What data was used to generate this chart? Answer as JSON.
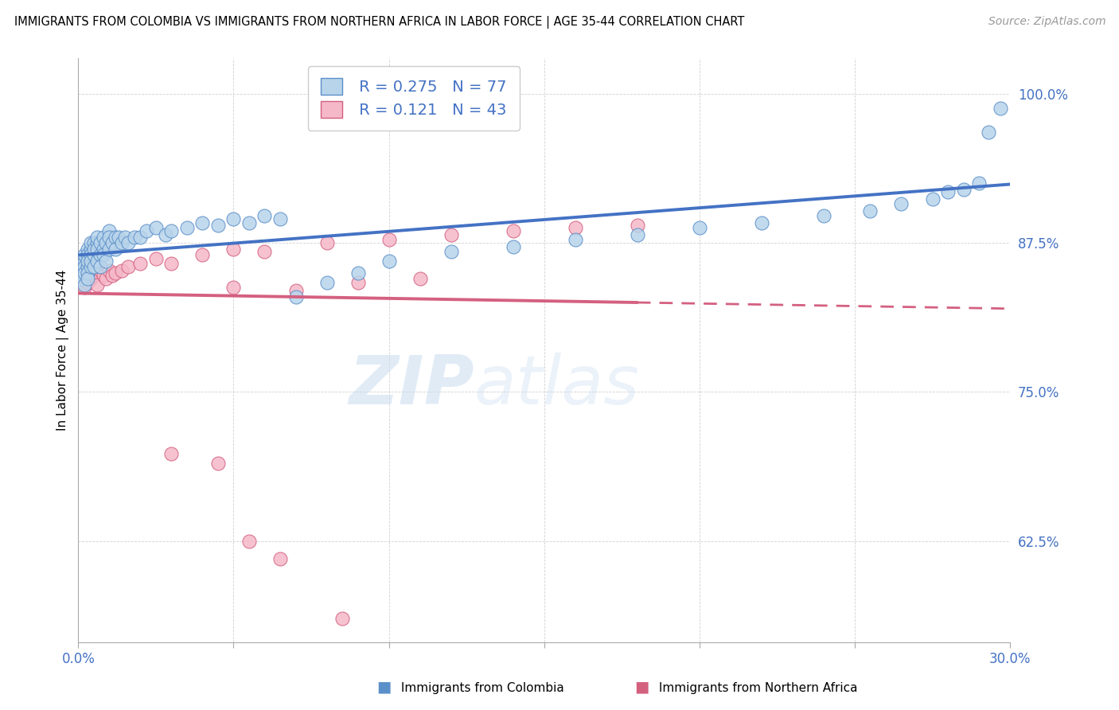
{
  "title": "IMMIGRANTS FROM COLOMBIA VS IMMIGRANTS FROM NORTHERN AFRICA IN LABOR FORCE | AGE 35-44 CORRELATION CHART",
  "source": "Source: ZipAtlas.com",
  "ylabel": "In Labor Force | Age 35-44",
  "xlim": [
    0.0,
    0.3
  ],
  "ylim": [
    0.54,
    1.03
  ],
  "ytick_positions": [
    0.625,
    0.75,
    0.875,
    1.0
  ],
  "ytick_labels": [
    "62.5%",
    "75.0%",
    "87.5%",
    "100.0%"
  ],
  "colombia_R": 0.275,
  "colombia_N": 77,
  "colombia_color": "#b8d4ea",
  "colombia_edge_color": "#5b8fc9",
  "colombia_line_color": "#4472C4",
  "northern_africa_R": 0.121,
  "northern_africa_N": 43,
  "northern_africa_color": "#f5b8c8",
  "northern_africa_edge_color": "#d46080",
  "northern_africa_line_color": "#d46080",
  "watermark_zip": "ZIP",
  "watermark_atlas": "atlas",
  "legend_text_color": "#4472C4",
  "bottom_legend_colombia_color": "#5b8fc9",
  "bottom_legend_na_color": "#d46080",
  "colombia_x": [
    0.001,
    0.001,
    0.001,
    0.002,
    0.002,
    0.002,
    0.002,
    0.002,
    0.003,
    0.003,
    0.003,
    0.003,
    0.003,
    0.003,
    0.004,
    0.004,
    0.004,
    0.004,
    0.004,
    0.005,
    0.005,
    0.005,
    0.005,
    0.006,
    0.006,
    0.006,
    0.006,
    0.007,
    0.007,
    0.007,
    0.008,
    0.008,
    0.008,
    0.009,
    0.009,
    0.01,
    0.01,
    0.01,
    0.011,
    0.012,
    0.012,
    0.013,
    0.014,
    0.015,
    0.016,
    0.018,
    0.02,
    0.022,
    0.025,
    0.028,
    0.03,
    0.035,
    0.04,
    0.045,
    0.05,
    0.055,
    0.06,
    0.065,
    0.07,
    0.08,
    0.09,
    0.1,
    0.12,
    0.14,
    0.16,
    0.18,
    0.2,
    0.22,
    0.24,
    0.255,
    0.265,
    0.275,
    0.28,
    0.285,
    0.29,
    0.293,
    0.297
  ],
  "colombia_y": [
    0.85,
    0.855,
    0.845,
    0.86,
    0.855,
    0.85,
    0.84,
    0.865,
    0.87,
    0.865,
    0.855,
    0.85,
    0.86,
    0.845,
    0.87,
    0.865,
    0.855,
    0.875,
    0.86,
    0.875,
    0.865,
    0.87,
    0.855,
    0.875,
    0.87,
    0.86,
    0.88,
    0.875,
    0.865,
    0.855,
    0.88,
    0.87,
    0.865,
    0.875,
    0.86,
    0.885,
    0.88,
    0.87,
    0.875,
    0.88,
    0.87,
    0.88,
    0.875,
    0.88,
    0.875,
    0.88,
    0.88,
    0.885,
    0.888,
    0.882,
    0.885,
    0.888,
    0.892,
    0.89,
    0.895,
    0.892,
    0.898,
    0.895,
    0.83,
    0.842,
    0.85,
    0.86,
    0.868,
    0.872,
    0.878,
    0.882,
    0.888,
    0.892,
    0.898,
    0.902,
    0.908,
    0.912,
    0.918,
    0.92,
    0.925,
    0.968,
    0.988
  ],
  "northern_africa_x": [
    0.001,
    0.001,
    0.002,
    0.002,
    0.002,
    0.003,
    0.003,
    0.003,
    0.004,
    0.004,
    0.005,
    0.005,
    0.006,
    0.006,
    0.007,
    0.008,
    0.009,
    0.01,
    0.011,
    0.012,
    0.014,
    0.016,
    0.02,
    0.025,
    0.03,
    0.04,
    0.05,
    0.06,
    0.08,
    0.1,
    0.12,
    0.14,
    0.16,
    0.18,
    0.05,
    0.07,
    0.09,
    0.11,
    0.03,
    0.045,
    0.055,
    0.065,
    0.085
  ],
  "northern_africa_y": [
    0.85,
    0.845,
    0.86,
    0.85,
    0.838,
    0.865,
    0.855,
    0.842,
    0.858,
    0.845,
    0.86,
    0.848,
    0.855,
    0.84,
    0.852,
    0.848,
    0.845,
    0.852,
    0.848,
    0.85,
    0.852,
    0.855,
    0.858,
    0.862,
    0.858,
    0.865,
    0.87,
    0.868,
    0.875,
    0.878,
    0.882,
    0.885,
    0.888,
    0.89,
    0.838,
    0.835,
    0.842,
    0.845,
    0.698,
    0.69,
    0.625,
    0.61,
    0.56
  ]
}
